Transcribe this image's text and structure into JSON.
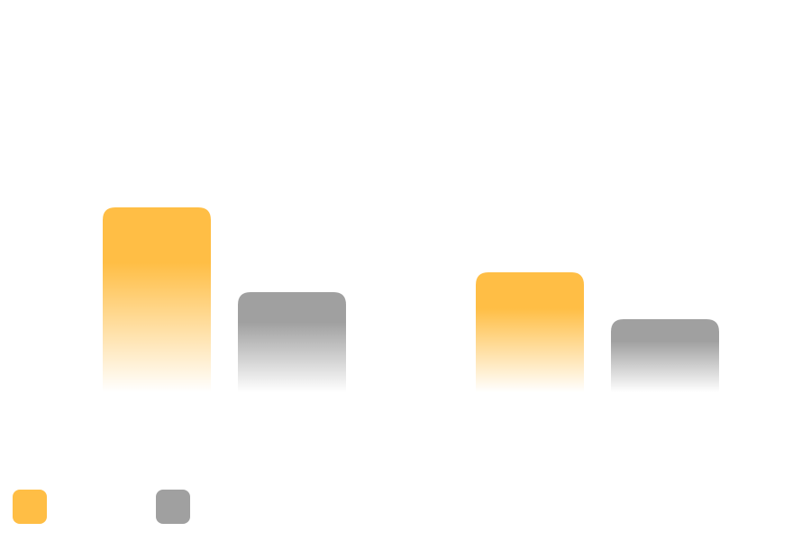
{
  "chart_data": {
    "type": "bar",
    "categories": [
      "",
      ""
    ],
    "series": [
      {
        "name": "",
        "values": [
          205,
          133
        ],
        "color": "#ffbe45"
      },
      {
        "name": "",
        "values": [
          111,
          81
        ],
        "color": "#a0a0a0"
      }
    ],
    "title": "",
    "xlabel": "",
    "ylabel": "",
    "ylim": [
      0,
      300
    ],
    "grid": false,
    "legend": "bottom-left",
    "bar_fill": "vertical-gradient-fade"
  }
}
